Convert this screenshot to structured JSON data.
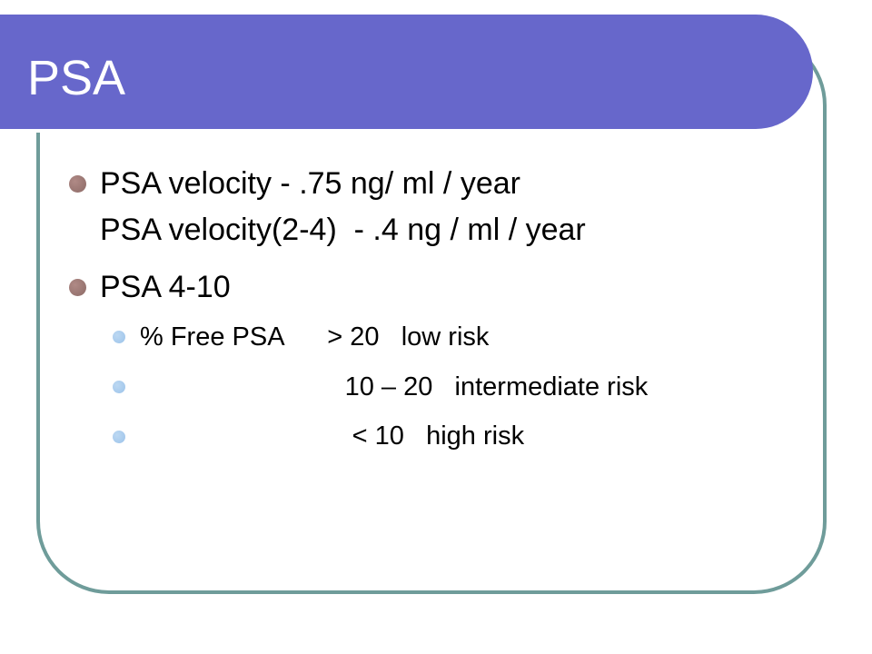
{
  "slide": {
    "title": "PSA",
    "bullets": [
      {
        "line1": "PSA velocity - .75 ng/ ml / year",
        "line2": "PSA velocity(2-4)  - .4 ng / ml / year"
      },
      {
        "line1": "PSA 4-10"
      }
    ],
    "sub_bullets": [
      "% Free PSA      > 20   low risk",
      "                            10 – 20   intermediate risk",
      "                             < 10   high risk"
    ]
  },
  "colors": {
    "title_bar": "#6767cb",
    "frame_border": "#6f9c9a",
    "bullet_level1": "#9b7773",
    "bullet_level2": "#a9cdef"
  }
}
